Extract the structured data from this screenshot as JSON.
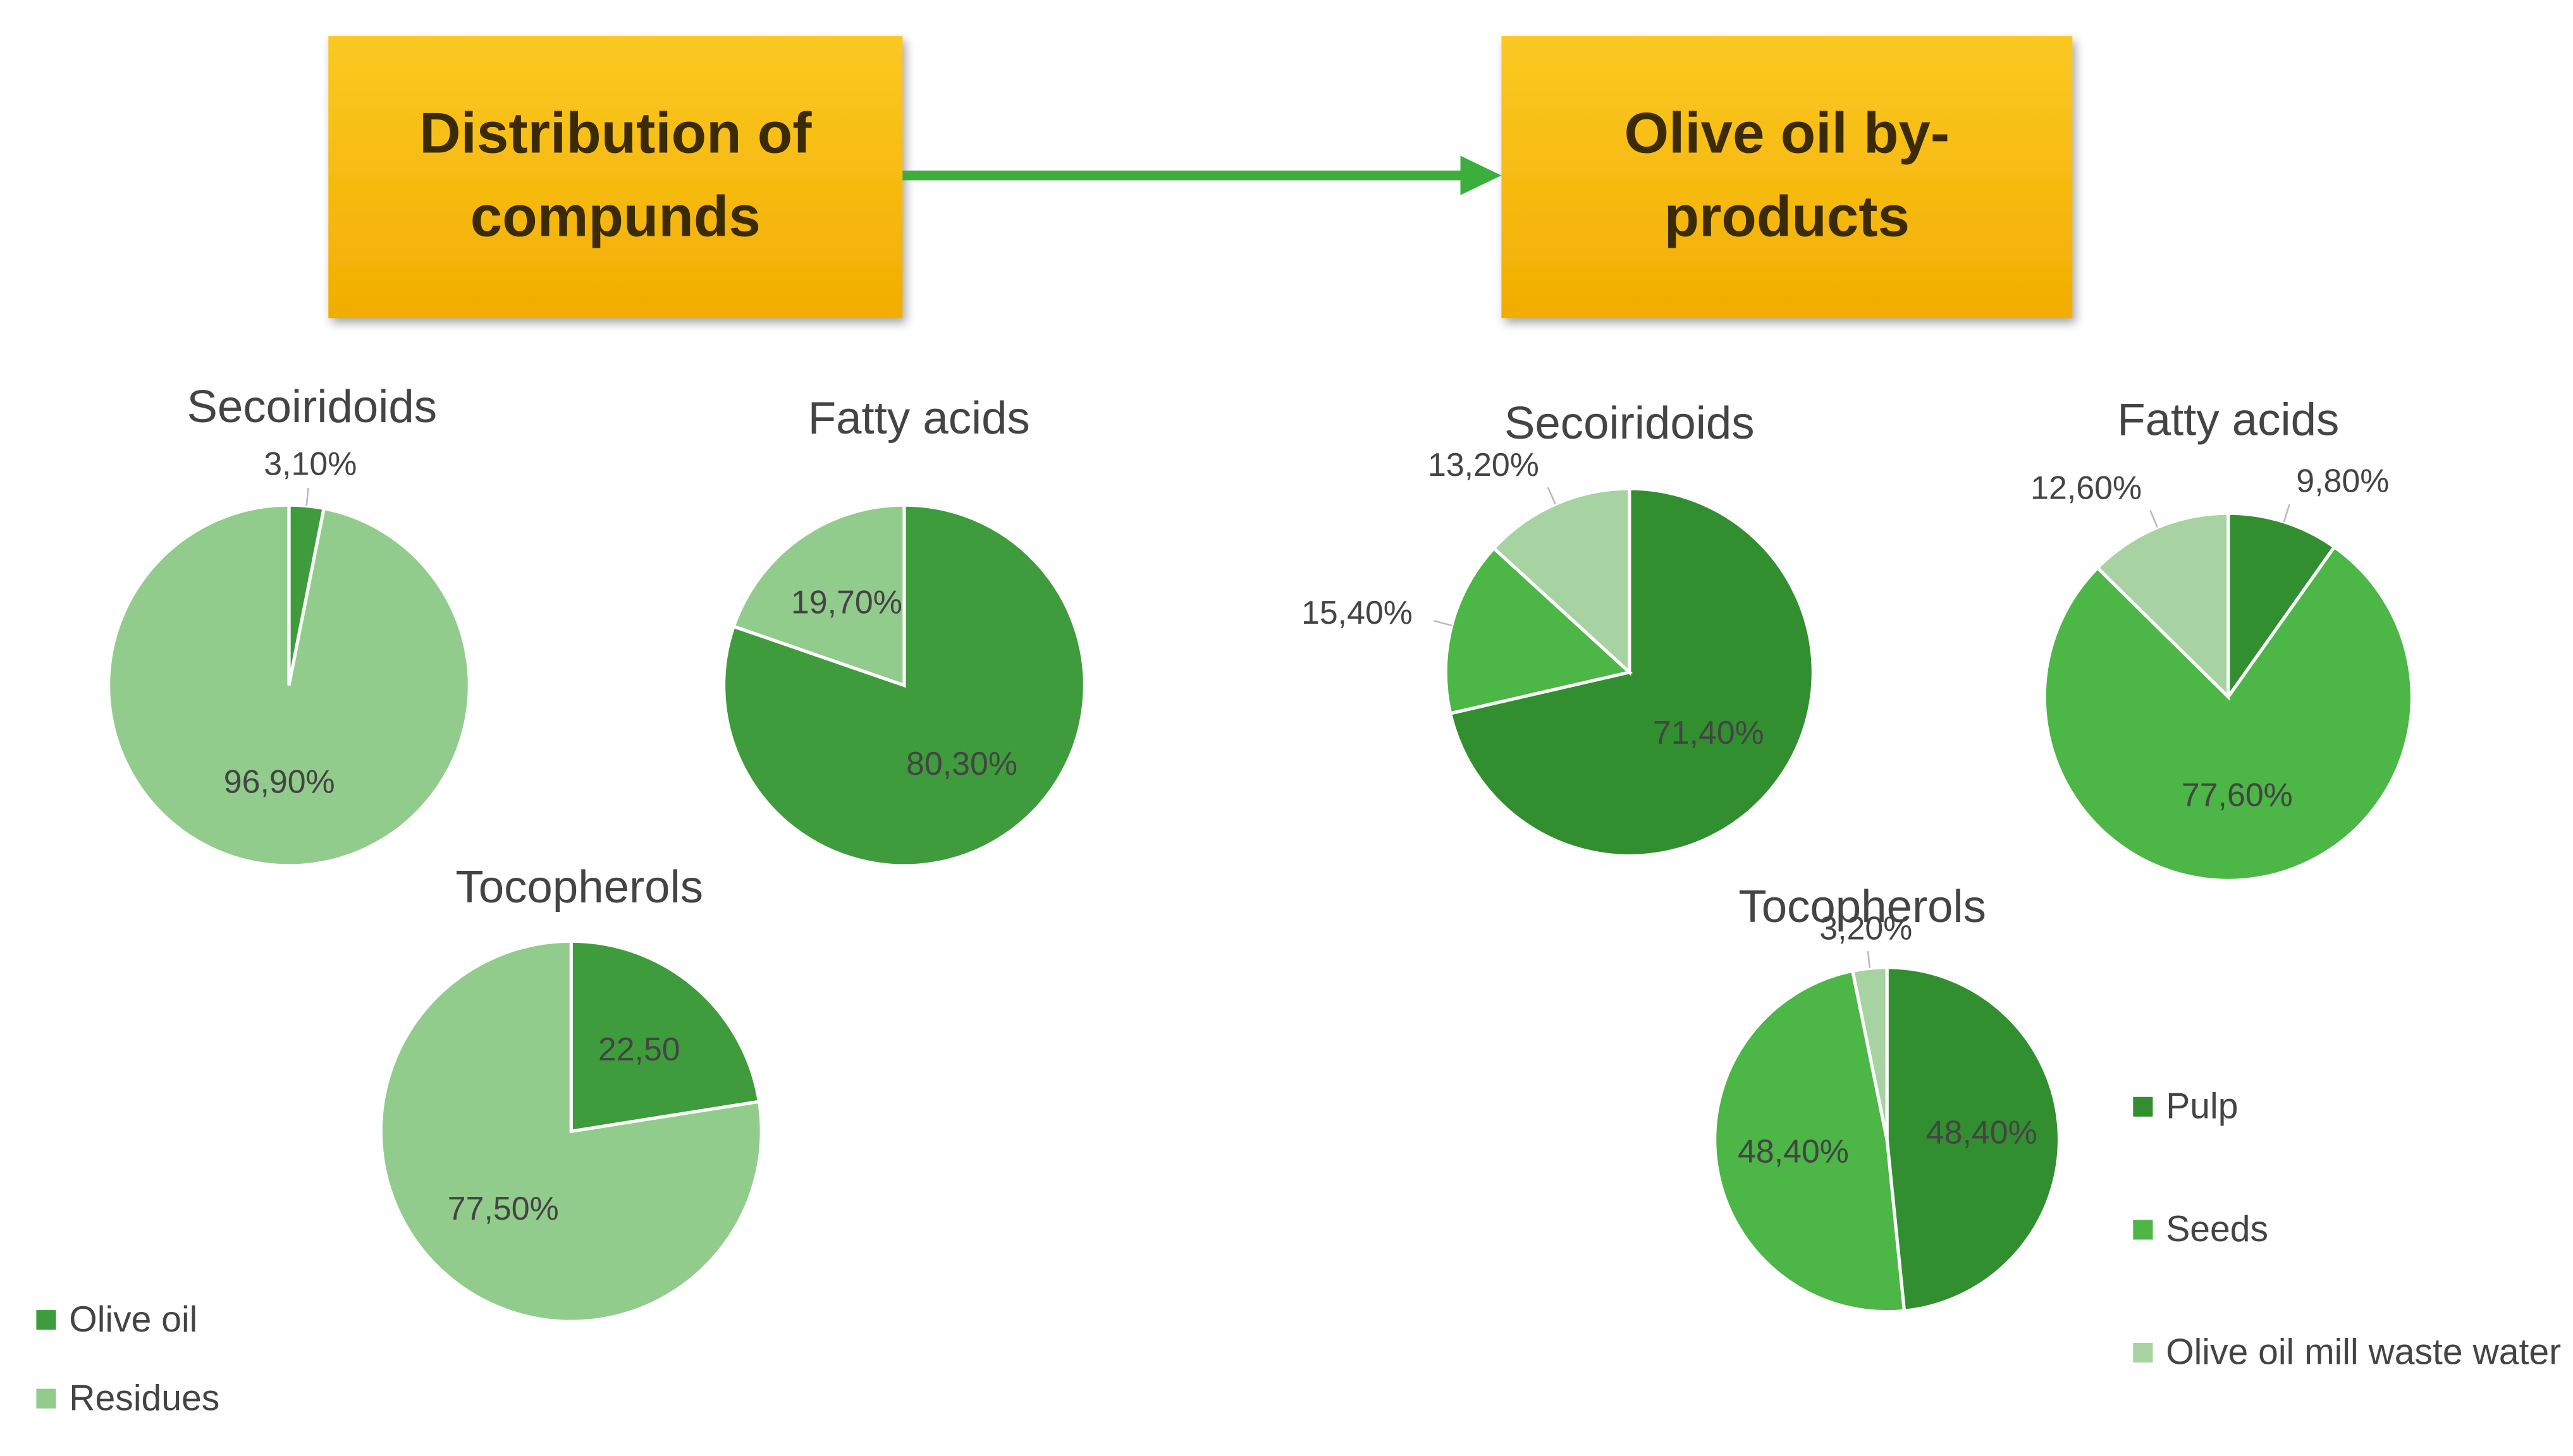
{
  "boxes": [
    "Distribution of compunds",
    "Olive oil by-products"
  ],
  "chart_data": [
    {
      "type": "pie",
      "categories": [
        "Olive oil",
        "Residues"
      ],
      "colors": [
        "#3f9c3c",
        "#92cc8c"
      ],
      "pies": [
        {
          "title": "Secoiridoids",
          "values": [
            3.1,
            96.9
          ],
          "value_labels": [
            "3,10%",
            "96,90%"
          ]
        },
        {
          "title": "Fatty acids",
          "values": [
            80.3,
            19.7
          ],
          "value_labels": [
            "80,30%",
            "19,70%"
          ]
        },
        {
          "title": "Tocopherols",
          "values": [
            22.5,
            77.5
          ],
          "value_labels": [
            "22,50",
            "77,50%"
          ]
        }
      ]
    },
    {
      "type": "pie",
      "categories": [
        "Pulp",
        "Seeds",
        "Olive oil mill waste water"
      ],
      "colors": [
        "#328f30",
        "#4cb646",
        "#a6d3a1"
      ],
      "pies": [
        {
          "title": "Secoiridoids",
          "values": [
            71.4,
            15.4,
            13.2
          ],
          "value_labels": [
            "71,40%",
            "15,40%",
            "13,20%"
          ]
        },
        {
          "title": "Fatty acids",
          "values": [
            9.8,
            77.6,
            12.6
          ],
          "value_labels": [
            "9,80%",
            "77,60%",
            "12,60%"
          ]
        },
        {
          "title": "Tocopherols",
          "values": [
            48.4,
            48.4,
            3.2
          ],
          "value_labels": [
            "48,40%",
            "48,40%",
            "3,20%"
          ]
        }
      ]
    }
  ]
}
